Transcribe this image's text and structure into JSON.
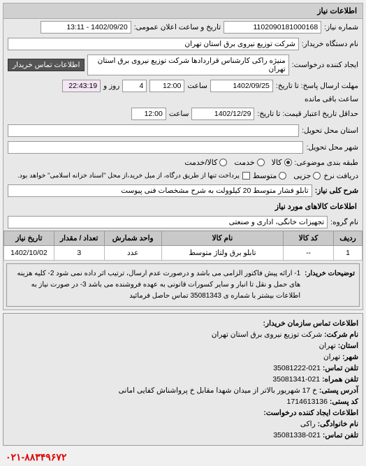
{
  "module_title": "اطلاعات نیاز",
  "info": {
    "req_no_label": "شماره نیاز:",
    "req_no": "1102090181000168",
    "pub_datetime_label": "تاریخ و ساعت اعلان عمومی:",
    "pub_datetime": "1402/09/20 - 13:11",
    "buyer_org_label": "نام دستگاه خریدار:",
    "buyer_org": "شرکت توزیع نیروی برق استان تهران",
    "creator_label": "ایجاد کننده درخواست:",
    "creator": "منیژه راکی کارشناس قراردادها شرکت توزیع نیروی برق استان تهران",
    "buyer_contact_label": "اطلاعات تماس خریدار",
    "deadline_label": "مهلت ارسال پاسخ: تا تاریخ:",
    "deadline_date": "1402/09/25",
    "time_label": "ساعت",
    "deadline_time": "12:00",
    "remaining_day": "4",
    "remaining_day_label": "روز و",
    "remaining_time": "22:43:19",
    "remaining_suffix": "ساعت باقی مانده",
    "validity_label": "حداقل تاریخ اعتبار قیمت: تا تاریخ:",
    "validity_date": "1402/12/29",
    "validity_time": "12:00",
    "delivery_place_label": "استان محل تحویل:",
    "delivery_city_label": "شهر محل تحویل:",
    "category_label": "طبقه بندی موضوعی:",
    "cat_kala": "کالا",
    "cat_khadmat": "خدمت",
    "cat_mix": "کالا/خدمت",
    "partial_label": "دریافت نرخ",
    "partial_jozi": "جزیی",
    "partial_motavaset": "متوسط",
    "partial_note": "پرداخت تنها از طریق درگاه، از میل خرید،از محل \"اسناد خزانه اسلامی\" خواهد بود.",
    "desc_label": "شرح کلی نیاز:",
    "desc_value": "تابلو فشار متوسط 20 کیلوولت به شرح مشخصات فنی پیوست"
  },
  "items_section_label": "اطلاعات کالاهای مورد نیاز",
  "group_label": "نام گروه:",
  "group_value": "تجهیزات خانگی، اداری و صنعتی",
  "table": {
    "columns": [
      "ردیف",
      "کد کالا",
      "نام کالا",
      "واحد شمارش",
      "تعداد / مقدار",
      "تاریخ نیاز"
    ],
    "rows": [
      [
        "1",
        "--",
        "تابلو برق ولتاژ متوسط",
        "عدد",
        "3",
        "1402/10/02"
      ]
    ],
    "col_widths": [
      "8%",
      "14%",
      "34%",
      "16%",
      "14%",
      "14%"
    ]
  },
  "buyer_desc_label": "توضیحات خریدار:",
  "buyer_desc": "1- ارائه پیش فاکتور الزامی می باشد و درصورت عدم ارسال، ترتیب اثر داده نمی شود 2- کلیه هزینه های حمل و نقل تا انبار و سایر کسورات قانونی به عهده فروشنده می باشد 3- در صورت نیاز به اطلاعات بیشتر با شماره ی 35081343 تماس حاصل فرمائید",
  "contact": {
    "title": "اطلاعات تماس سازمان خریدار:",
    "name_label": "نام شرکت:",
    "name": "شرکت توزیع نیروی برق استان تهران",
    "province_label": "استان:",
    "province": "تهران",
    "city_label": "شهر:",
    "city": "تهران",
    "phone_label": "تلفن تماس:",
    "phone": "021-35081222",
    "fax_label": "تلفن همراه:",
    "fax": "021-35081341",
    "address_label": "آدرس پستی:",
    "address": "خ 17 شهریور بالاتر از میدان شهدا مقابل خ پرواشناش کفایی امانی",
    "postal_label": "کد پستی:",
    "postal": "1714613136",
    "req_creator_label": "اطلاعات ایجاد کننده درخواست:",
    "family_label": "نام خانوادگی:",
    "family": "راکی",
    "tel_label": "تلفن تماس:",
    "tel": "021-35081338"
  },
  "footer_phone": "۰۲۱-۸۸۳۴۹۶۷۲"
}
